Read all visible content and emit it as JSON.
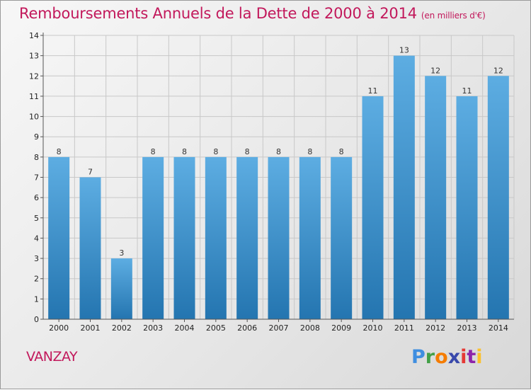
{
  "title": "Remboursements Annuels de la Dette de 2000 à 2014",
  "title_unit": "(en milliers d'€)",
  "place": "VANZAY",
  "logo": {
    "letters": [
      "P",
      "r",
      "o",
      "x",
      "i",
      "t",
      "i"
    ],
    "colors": [
      "#3f8ee0",
      "#43a047",
      "#f57c00",
      "#3949ab",
      "#e53935",
      "#8e24aa",
      "#fbc02d"
    ]
  },
  "chart_data": {
    "type": "bar",
    "title": "Remboursements Annuels de la Dette de 2000 à 2014",
    "unit": "(en milliers d'€)",
    "categories": [
      "2000",
      "2001",
      "2002",
      "2003",
      "2004",
      "2005",
      "2006",
      "2007",
      "2008",
      "2009",
      "2010",
      "2011",
      "2012",
      "2013",
      "2014"
    ],
    "values": [
      8,
      7,
      3,
      8,
      8,
      8,
      8,
      8,
      8,
      8,
      11,
      13,
      12,
      11,
      12
    ],
    "ylim": [
      0,
      14
    ],
    "yticks": [
      0,
      1,
      2,
      3,
      4,
      5,
      6,
      7,
      8,
      9,
      10,
      11,
      12,
      13,
      14
    ],
    "grid": true,
    "bar_color_top": "#5dade2",
    "bar_color_bottom": "#2475b0"
  }
}
